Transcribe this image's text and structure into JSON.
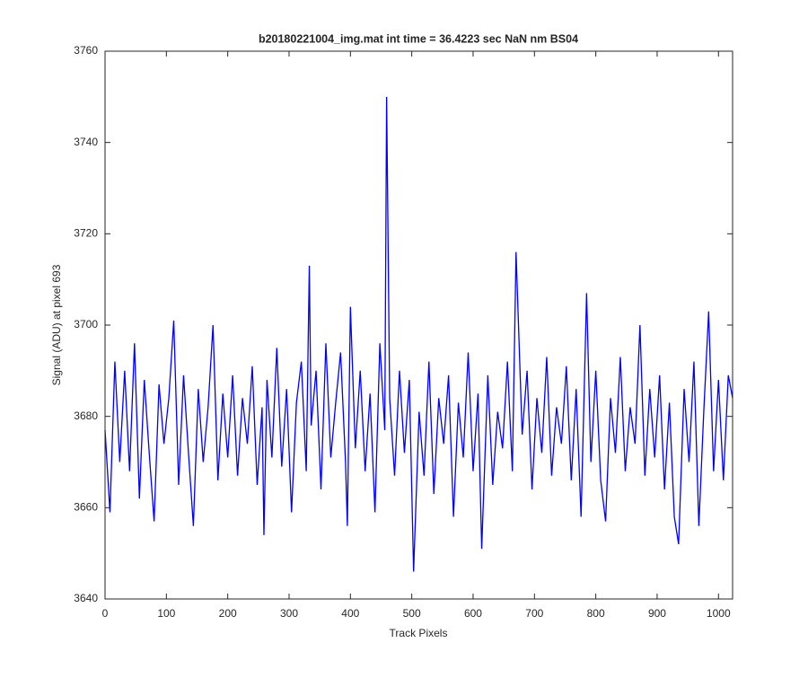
{
  "chart_data": {
    "type": "line",
    "title": "b20180221004_img.mat int time = 36.4223 sec  NaN nm BS04",
    "x_label": "Track Pixels",
    "y_label": "Signal (ADU) at pixel 693",
    "x": [
      0,
      8,
      16,
      24,
      32,
      40,
      48,
      56,
      64,
      72,
      80,
      88,
      96,
      104,
      112,
      120,
      128,
      136,
      144,
      152,
      160,
      168,
      176,
      184,
      192,
      200,
      208,
      216,
      224,
      232,
      240,
      248,
      256,
      259,
      264,
      272,
      280,
      288,
      296,
      304,
      312,
      320,
      328,
      333,
      336,
      344,
      352,
      360,
      368,
      376,
      384,
      392,
      395,
      400,
      408,
      416,
      424,
      432,
      440,
      448,
      456,
      459,
      464,
      472,
      480,
      488,
      496,
      503,
      512,
      520,
      528,
      536,
      544,
      552,
      560,
      568,
      576,
      584,
      592,
      600,
      608,
      614,
      624,
      632,
      640,
      648,
      656,
      664,
      670,
      680,
      688,
      696,
      704,
      712,
      720,
      728,
      736,
      744,
      752,
      760,
      768,
      776,
      785,
      792,
      800,
      808,
      816,
      824,
      832,
      840,
      848,
      856,
      864,
      872,
      880,
      888,
      896,
      904,
      912,
      920,
      928,
      935,
      944,
      952,
      960,
      968,
      976,
      984,
      992,
      1000,
      1008,
      1016,
      1023
    ],
    "series": [
      {
        "name": "signal",
        "color": "#0000ff",
        "values": [
          3677,
          3659,
          3692,
          3670,
          3690,
          3668,
          3696,
          3662,
          3688,
          3672,
          3657,
          3687,
          3674,
          3684,
          3701,
          3665,
          3689,
          3672,
          3656,
          3686,
          3670,
          3682,
          3700,
          3666,
          3685,
          3671,
          3689,
          3667,
          3684,
          3674,
          3691,
          3665,
          3682,
          3654,
          3688,
          3671,
          3695,
          3669,
          3686,
          3659,
          3683,
          3692,
          3668,
          3713,
          3678,
          3690,
          3664,
          3696,
          3671,
          3683,
          3694,
          3670,
          3656,
          3704,
          3673,
          3690,
          3668,
          3685,
          3659,
          3696,
          3677,
          3750,
          3684,
          3667,
          3690,
          3672,
          3688,
          3646,
          3681,
          3667,
          3692,
          3663,
          3684,
          3674,
          3689,
          3658,
          3683,
          3671,
          3694,
          3668,
          3685,
          3651,
          3689,
          3665,
          3681,
          3673,
          3692,
          3668,
          3716,
          3676,
          3690,
          3664,
          3684,
          3672,
          3693,
          3667,
          3682,
          3674,
          3691,
          3666,
          3686,
          3658,
          3707,
          3670,
          3690,
          3666,
          3657,
          3684,
          3672,
          3693,
          3668,
          3682,
          3674,
          3700,
          3667,
          3686,
          3671,
          3689,
          3664,
          3683,
          3658,
          3652,
          3686,
          3670,
          3692,
          3656,
          3681,
          3703,
          3668,
          3688,
          3666,
          3689,
          3684
        ]
      }
    ],
    "xlim": [
      0,
      1023
    ],
    "xticks": [
      0,
      100,
      200,
      300,
      400,
      500,
      600,
      700,
      800,
      900,
      1000
    ],
    "ylim": [
      3640,
      3760
    ],
    "yticks": [
      3640,
      3660,
      3680,
      3700,
      3720,
      3740,
      3760
    ]
  }
}
